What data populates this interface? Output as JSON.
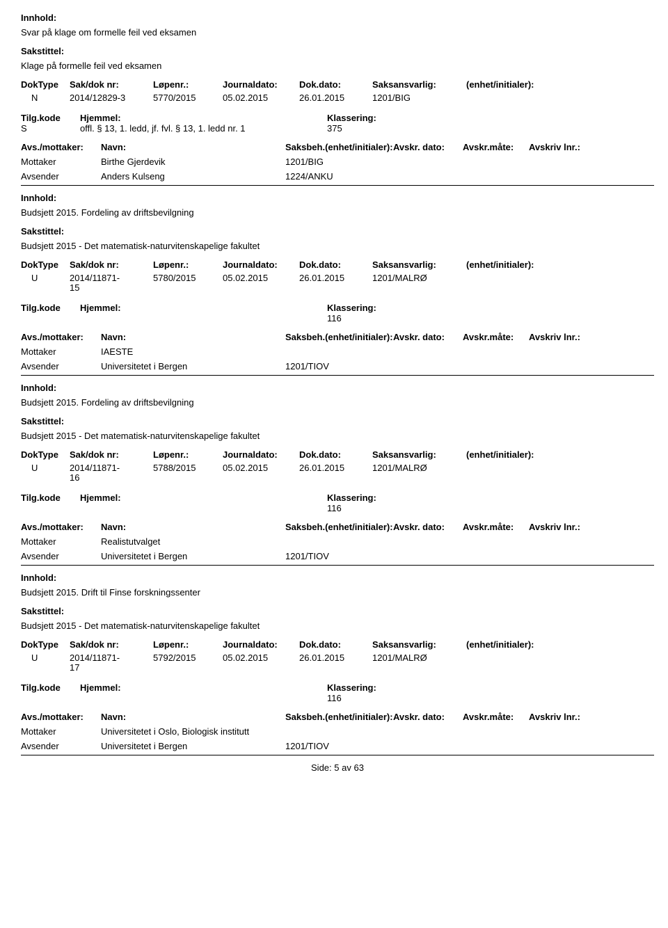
{
  "labels": {
    "innhold": "Innhold:",
    "sakstittel": "Sakstittel:",
    "doktype": "DokType",
    "sakdok": "Sak/dok nr:",
    "lopenr": "Løpenr.:",
    "journaldato": "Journaldato:",
    "dokdato": "Dok.dato:",
    "saksansvarlig": "Saksansvarlig:",
    "enhet": "(enhet/initialer):",
    "tilgkode": "Tilg.kode",
    "hjemmel": "Hjemmel:",
    "klassering": "Klassering:",
    "avsmottaker": "Avs./mottaker:",
    "navn": "Navn:",
    "saksbeh": "Saksbeh.(enhet/initialer):",
    "avskrdato": "Avskr. dato:",
    "avskrmate": "Avskr.måte:",
    "avskrivlnr": "Avskriv lnr.:",
    "mottaker": "Mottaker",
    "avsender": "Avsender"
  },
  "records": [
    {
      "innhold": "Svar på klage om formelle feil ved eksamen",
      "sakstittel": "Klage på formelle feil ved eksamen",
      "doktype": "N",
      "sakdok": "2014/12829-3",
      "sakdok_sub": "",
      "lopenr": "5770/2015",
      "journaldato": "05.02.2015",
      "dokdato": "26.01.2015",
      "saksansvarlig": "1201/BIG",
      "tilgkode": "S",
      "hjemmel": "offl. § 13, 1. ledd, jf. fvl. § 13, 1. ledd nr. 1",
      "klassering": "375",
      "parties": [
        {
          "role": "Mottaker",
          "name": "Birthe Gjerdevik",
          "code": "1201/BIG"
        },
        {
          "role": "Avsender",
          "name": "Anders Kulseng",
          "code": "1224/ANKU"
        }
      ]
    },
    {
      "innhold": "Budsjett 2015. Fordeling av driftsbevilgning",
      "sakstittel": "Budsjett 2015 - Det matematisk-naturvitenskapelige fakultet",
      "doktype": "U",
      "sakdok": "2014/11871-",
      "sakdok_sub": "15",
      "lopenr": "5780/2015",
      "journaldato": "05.02.2015",
      "dokdato": "26.01.2015",
      "saksansvarlig": "1201/MALRØ",
      "tilgkode": "",
      "hjemmel": "",
      "klassering": "116",
      "parties": [
        {
          "role": "Mottaker",
          "name": "IAESTE",
          "code": ""
        },
        {
          "role": "Avsender",
          "name": "Universitetet i Bergen",
          "code": "1201/TIOV"
        }
      ]
    },
    {
      "innhold": "Budsjett 2015. Fordeling av driftsbevilgning",
      "sakstittel": "Budsjett 2015 - Det matematisk-naturvitenskapelige fakultet",
      "doktype": "U",
      "sakdok": "2014/11871-",
      "sakdok_sub": "16",
      "lopenr": "5788/2015",
      "journaldato": "05.02.2015",
      "dokdato": "26.01.2015",
      "saksansvarlig": "1201/MALRØ",
      "tilgkode": "",
      "hjemmel": "",
      "klassering": "116",
      "parties": [
        {
          "role": "Mottaker",
          "name": "Realistutvalget",
          "code": ""
        },
        {
          "role": "Avsender",
          "name": "Universitetet i Bergen",
          "code": "1201/TIOV"
        }
      ]
    },
    {
      "innhold": "Budsjett 2015. Drift til Finse forskningssenter",
      "sakstittel": "Budsjett 2015 - Det matematisk-naturvitenskapelige fakultet",
      "doktype": "U",
      "sakdok": "2014/11871-",
      "sakdok_sub": "17",
      "lopenr": "5792/2015",
      "journaldato": "05.02.2015",
      "dokdato": "26.01.2015",
      "saksansvarlig": "1201/MALRØ",
      "tilgkode": "",
      "hjemmel": "",
      "klassering": "116",
      "parties": [
        {
          "role": "Mottaker",
          "name": "Universitetet i Oslo, Biologisk institutt",
          "code": ""
        },
        {
          "role": "Avsender",
          "name": "Universitetet i Bergen",
          "code": "1201/TIOV"
        }
      ]
    }
  ],
  "footer": {
    "side": "Side:",
    "page": "5",
    "av": "av",
    "total": "63"
  }
}
